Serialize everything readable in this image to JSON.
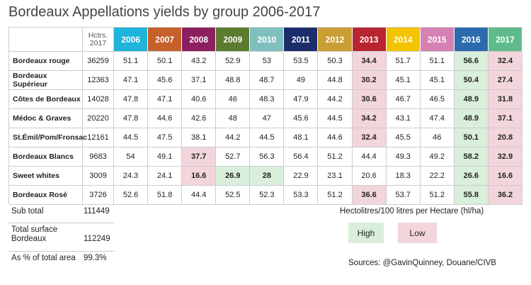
{
  "title": "Bordeaux Appellations yields by group 2006-2017",
  "table": {
    "hectares_header": [
      "Hctrs.",
      "2017"
    ],
    "years": [
      {
        "label": "2006",
        "color": "#1fb4da"
      },
      {
        "label": "2007",
        "color": "#c6602b"
      },
      {
        "label": "2008",
        "color": "#8c1f5f"
      },
      {
        "label": "2009",
        "color": "#5b7b2f"
      },
      {
        "label": "2010",
        "color": "#7fc0bf"
      },
      {
        "label": "2011",
        "color": "#1b2d6b"
      },
      {
        "label": "2012",
        "color": "#c99f34"
      },
      {
        "label": "2013",
        "color": "#b8242f"
      },
      {
        "label": "2014",
        "color": "#f2c300"
      },
      {
        "label": "2015",
        "color": "#d581b4"
      },
      {
        "label": "2016",
        "color": "#2b6bae"
      },
      {
        "label": "2017",
        "color": "#5fbb8b"
      }
    ],
    "rows": [
      {
        "name": "Bordeaux rouge",
        "hectares": 36259,
        "values": [
          51.1,
          50.1,
          43.2,
          52.9,
          53,
          53.5,
          50.3,
          34.4,
          51.7,
          51.1,
          56.6,
          32.4
        ],
        "highlight": [
          null,
          null,
          null,
          null,
          null,
          null,
          null,
          "low",
          null,
          null,
          "high",
          "low"
        ]
      },
      {
        "name": "Bordeaux Supérieur",
        "hectares": 12363,
        "values": [
          47.1,
          45.6,
          37.1,
          48.8,
          48.7,
          49,
          44.8,
          30.2,
          45.1,
          45.1,
          50.4,
          27.4
        ],
        "highlight": [
          null,
          null,
          null,
          null,
          null,
          null,
          null,
          "low",
          null,
          null,
          "high",
          "low"
        ]
      },
      {
        "name": "Côtes de Bordeaux",
        "hectares": 14028,
        "values": [
          47.8,
          47.1,
          40.6,
          46,
          48.3,
          47.9,
          44.2,
          30.6,
          46.7,
          46.5,
          48.9,
          31.8
        ],
        "highlight": [
          null,
          null,
          null,
          null,
          null,
          null,
          null,
          "low",
          null,
          null,
          "high",
          "low"
        ]
      },
      {
        "name": "Médoc & Graves",
        "hectares": 20220,
        "values": [
          47.8,
          44.6,
          42.6,
          48,
          47,
          45.6,
          44.5,
          34.2,
          43.1,
          47.4,
          48.9,
          37.1
        ],
        "highlight": [
          null,
          null,
          null,
          null,
          null,
          null,
          null,
          "low",
          null,
          null,
          "high",
          "low"
        ]
      },
      {
        "name": "St.Émil/Pom/Fronsac",
        "hectares": 12161,
        "values": [
          44.5,
          47.5,
          38.1,
          44.2,
          44.5,
          48.1,
          44.6,
          32.4,
          45.5,
          46,
          50.1,
          20.8
        ],
        "highlight": [
          null,
          null,
          null,
          null,
          null,
          null,
          null,
          "low",
          null,
          null,
          "high",
          "low"
        ]
      },
      {
        "name": "Bordeaux Blancs",
        "hectares": 9683,
        "values": [
          54,
          49.1,
          37.7,
          52.7,
          56.3,
          56.4,
          51.2,
          44.4,
          49.3,
          49.2,
          58.2,
          32.9
        ],
        "highlight": [
          null,
          null,
          "low",
          null,
          null,
          null,
          null,
          null,
          null,
          null,
          "high",
          "low"
        ]
      },
      {
        "name": "Sweet whites",
        "hectares": 3009,
        "values": [
          24.3,
          24.1,
          16.6,
          26.9,
          28,
          22.9,
          23.1,
          20.6,
          18.3,
          22.2,
          26.6,
          16.6
        ],
        "highlight": [
          null,
          null,
          "low",
          "high",
          "high",
          null,
          null,
          null,
          null,
          null,
          "high",
          "low"
        ]
      },
      {
        "name": "Bordeaux Rosé",
        "hectares": 3726,
        "values": [
          52.6,
          51.8,
          44.4,
          52.5,
          52.3,
          53.3,
          51.2,
          36.6,
          53.7,
          51.2,
          55.8,
          36.2
        ],
        "highlight": [
          null,
          null,
          null,
          null,
          null,
          null,
          null,
          "low",
          null,
          null,
          "high",
          "low"
        ]
      }
    ]
  },
  "totals": [
    {
      "label": "Sub total",
      "value": 111449
    },
    {
      "label": "Total surface Bordeaux",
      "value": 112249
    },
    {
      "label": "As % of total area",
      "value": "99.3%"
    }
  ],
  "legend": {
    "unit": "Hectolitres/100 litres per Hectare (hl/ha)",
    "high": {
      "label": "High",
      "color": "#d9eedb"
    },
    "low": {
      "label": "Low",
      "color": "#f3d5dc"
    }
  },
  "source": "Sources: @GavinQuinney, Douane/CIVB"
}
